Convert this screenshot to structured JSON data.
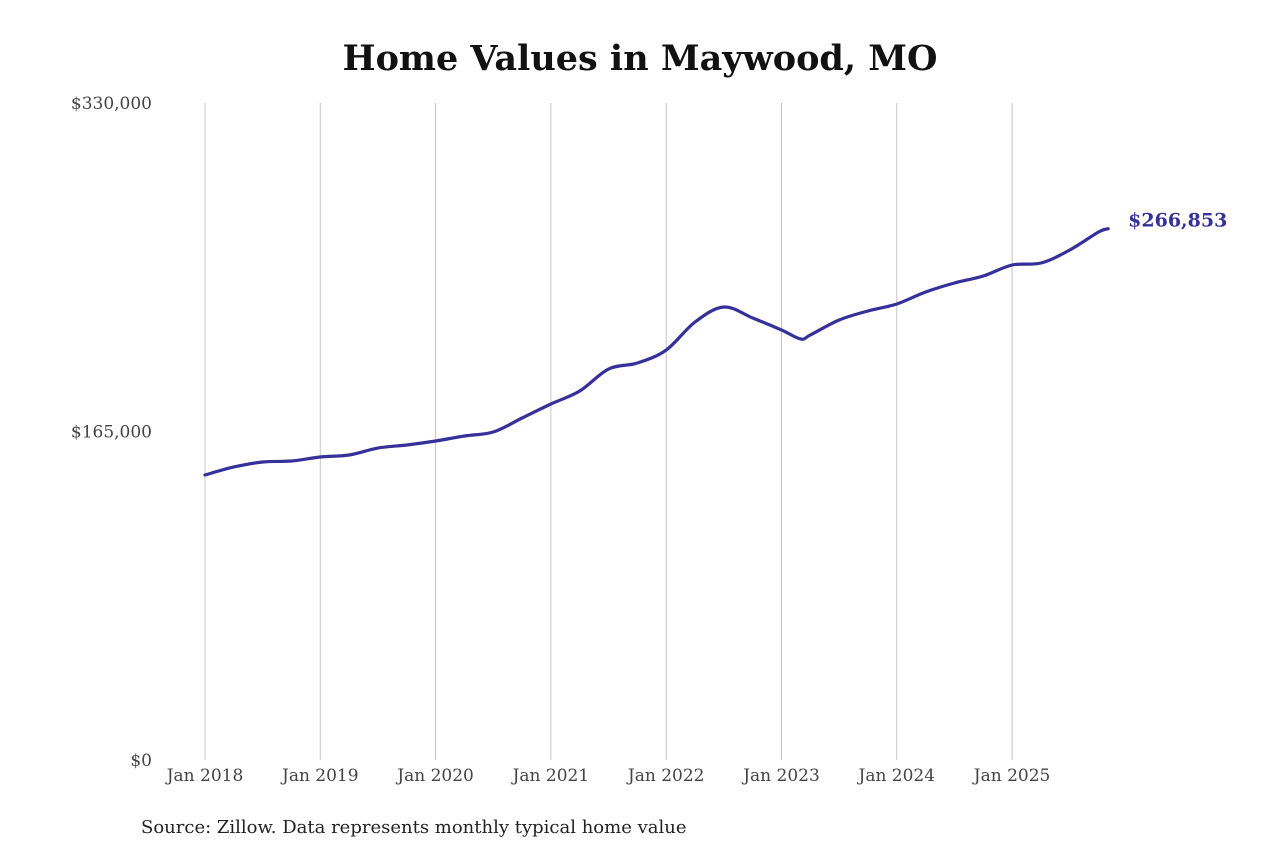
{
  "chart_data": {
    "type": "line",
    "title": "Home Values in Maywood, MO",
    "xlabel": "",
    "ylabel": "",
    "ylim": [
      0,
      330000
    ],
    "yticks": [
      "$0",
      "$165,000",
      "$330,000"
    ],
    "ytick_values": [
      0,
      165000,
      330000
    ],
    "xticks": [
      "Jan 2018",
      "Jan 2019",
      "Jan 2020",
      "Jan 2021",
      "Jan 2022",
      "Jan 2023",
      "Jan 2024",
      "Jan 2025"
    ],
    "grid": "vertical",
    "line_color": "#35309a",
    "end_label": "$266,853",
    "series": [
      {
        "x": [
          "2018-01",
          "2018-04",
          "2018-07",
          "2018-10",
          "2019-01",
          "2019-04",
          "2019-07",
          "2019-10",
          "2020-01",
          "2020-04",
          "2020-07",
          "2020-10",
          "2021-01",
          "2021-04",
          "2021-07",
          "2021-10",
          "2022-01",
          "2022-04",
          "2022-07",
          "2022-10",
          "2023-01",
          "2023-03",
          "2023-04",
          "2023-07",
          "2023-10",
          "2024-01",
          "2024-04",
          "2024-07",
          "2024-10",
          "2025-01",
          "2025-04",
          "2025-07",
          "2025-10",
          "2025-11"
        ],
        "values": [
          143150,
          147170,
          149680,
          150180,
          152190,
          153200,
          156700,
          158220,
          160230,
          162740,
          164750,
          171780,
          178810,
          185340,
          196390,
          199400,
          205930,
          220000,
          227530,
          222010,
          215980,
          211460,
          213470,
          221000,
          225530,
          229040,
          235070,
          239590,
          243100,
          248630,
          249630,
          256160,
          265200,
          266853
        ]
      }
    ]
  },
  "source": "Source: Zillow. Data represents monthly typical home value"
}
